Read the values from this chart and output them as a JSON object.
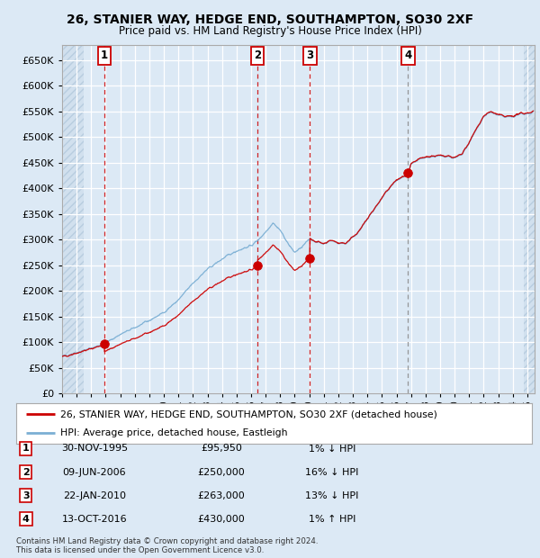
{
  "title_line1": "26, STANIER WAY, HEDGE END, SOUTHAMPTON, SO30 2XF",
  "title_line2": "Price paid vs. HM Land Registry's House Price Index (HPI)",
  "background_color": "#dce9f5",
  "plot_bg_color": "#dce9f5",
  "hatch_color": "#b8cde0",
  "grid_color": "#ffffff",
  "red_line_color": "#cc0000",
  "blue_line_color": "#7bafd4",
  "sale_marker_color": "#cc0000",
  "vline_red_color": "#cc0000",
  "vline_grey_color": "#888888",
  "legend_box_color": "#ffffff",
  "legend_border_color": "#aaaaaa",
  "ylim": [
    0,
    680000
  ],
  "yticks": [
    0,
    50000,
    100000,
    150000,
    200000,
    250000,
    300000,
    350000,
    400000,
    450000,
    500000,
    550000,
    600000,
    650000
  ],
  "xlim_start": 1993.0,
  "xlim_end": 2025.5,
  "hatch_left_end": 1994.5,
  "hatch_right_start": 2024.75,
  "sales": [
    {
      "num": 1,
      "year": 1995.917,
      "price": 95950,
      "label": "30-NOV-1995",
      "price_str": "£95,950",
      "hpi_rel": "1% ↓ HPI",
      "vline_style": "red"
    },
    {
      "num": 2,
      "year": 2006.44,
      "price": 250000,
      "label": "09-JUN-2006",
      "price_str": "£250,000",
      "hpi_rel": "16% ↓ HPI",
      "vline_style": "red"
    },
    {
      "num": 3,
      "year": 2010.05,
      "price": 263000,
      "label": "22-JAN-2010",
      "price_str": "£263,000",
      "hpi_rel": "13% ↓ HPI",
      "vline_style": "red"
    },
    {
      "num": 4,
      "year": 2016.79,
      "price": 430000,
      "label": "13-OCT-2016",
      "price_str": "£430,000",
      "hpi_rel": "1% ↑ HPI",
      "vline_style": "grey"
    }
  ],
  "legend_line1": "26, STANIER WAY, HEDGE END, SOUTHAMPTON, SO30 2XF (detached house)",
  "legend_line2": "HPI: Average price, detached house, Eastleigh",
  "footnote1": "Contains HM Land Registry data © Crown copyright and database right 2024.",
  "footnote2": "This data is licensed under the Open Government Licence v3.0."
}
